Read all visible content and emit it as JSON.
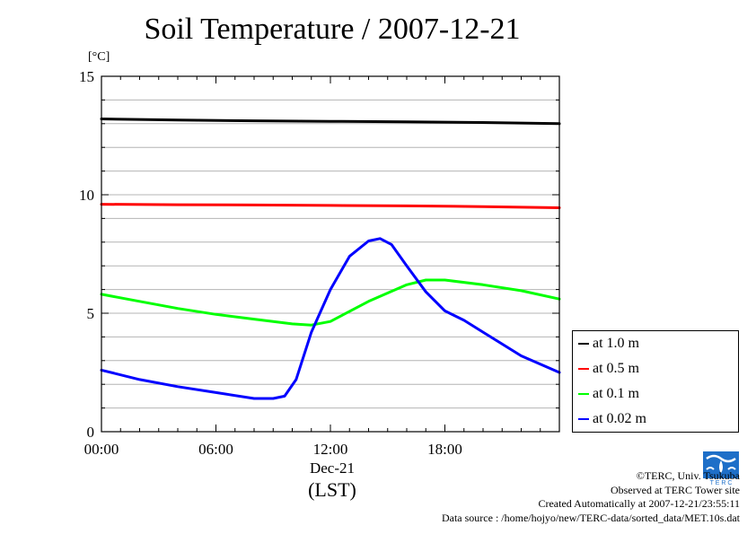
{
  "chart_data": {
    "type": "line",
    "title": "Soil Temperature / 2007-12-21",
    "ylabel": "[°C]",
    "xlabel": "(LST)",
    "xdate_label": "Dec-21",
    "ylim": [
      0,
      15
    ],
    "xlim": [
      0,
      24
    ],
    "y_ticks": [
      "0",
      "5",
      "10",
      "15"
    ],
    "x_ticks": [
      {
        "hour": 0,
        "label": "00:00"
      },
      {
        "hour": 6,
        "label": "06:00"
      },
      {
        "hour": 12,
        "label": "12:00"
      },
      {
        "hour": 18,
        "label": "18:00"
      }
    ],
    "grid": true,
    "legend_position": "right",
    "series": [
      {
        "name": "at 1.0 m",
        "color": "#000000",
        "x": [
          0,
          4,
          8,
          12,
          16,
          20,
          24
        ],
        "y": [
          13.2,
          13.15,
          13.12,
          13.1,
          13.08,
          13.05,
          13.0
        ]
      },
      {
        "name": "at 0.5 m",
        "color": "#ff0000",
        "x": [
          0,
          4,
          8,
          12,
          16,
          20,
          24
        ],
        "y": [
          9.6,
          9.58,
          9.57,
          9.55,
          9.53,
          9.5,
          9.45
        ]
      },
      {
        "name": "at 0.1 m",
        "color": "#00ff00",
        "x": [
          0,
          2,
          4,
          6,
          8,
          10,
          11,
          12,
          14,
          16,
          17,
          18,
          20,
          22,
          24
        ],
        "y": [
          5.8,
          5.5,
          5.2,
          4.95,
          4.75,
          4.55,
          4.5,
          4.65,
          5.5,
          6.2,
          6.4,
          6.4,
          6.2,
          5.95,
          5.6
        ]
      },
      {
        "name": "at 0.02 m",
        "color": "#0000ff",
        "x": [
          0,
          2,
          4,
          6,
          8,
          9,
          9.6,
          10.2,
          11,
          12,
          13,
          14,
          14.6,
          15.2,
          16,
          17,
          18,
          19,
          20,
          22,
          24
        ],
        "y": [
          2.6,
          2.2,
          1.9,
          1.65,
          1.4,
          1.4,
          1.5,
          2.2,
          4.2,
          6.0,
          7.4,
          8.05,
          8.15,
          7.9,
          7.0,
          5.9,
          5.1,
          4.7,
          4.2,
          3.2,
          2.5
        ]
      }
    ]
  },
  "credits": {
    "copyright": "©TERC, Univ. Tsukuba",
    "observed": "Observed at TERC Tower site",
    "created": "Created Automatically at 2007-12-21/23:55:11",
    "source": "Data source : /home/hojyo/new/TERC-data/sorted_data/MET.10s.dat"
  },
  "logo_icon": "terc-logo-icon",
  "logo_color": "#1e6fc8"
}
